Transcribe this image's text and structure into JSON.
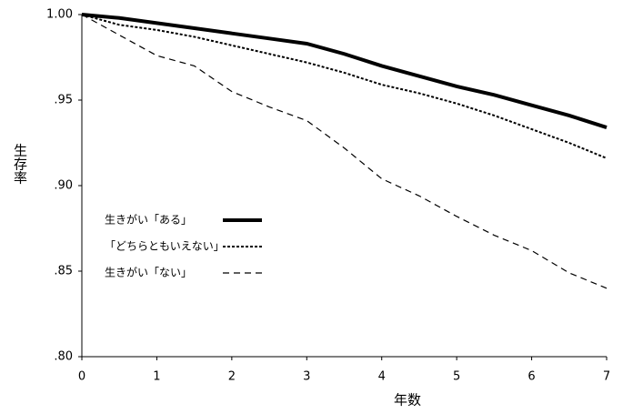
{
  "chart_data": {
    "type": "line",
    "x_label": "年数",
    "y_label": "生存率",
    "x": [
      0,
      0.5,
      1,
      1.5,
      2,
      2.5,
      3,
      3.5,
      4,
      4.5,
      5,
      5.5,
      6,
      6.5,
      7
    ],
    "series": [
      {
        "name": "生きがい「ある」",
        "color": "#000000",
        "linestyle": "solid",
        "linewidth": 4,
        "values": [
          1.0,
          0.998,
          0.995,
          0.992,
          0.989,
          0.986,
          0.983,
          0.977,
          0.97,
          0.964,
          0.958,
          0.953,
          0.947,
          0.941,
          0.934
        ]
      },
      {
        "name": "「どちらともいえない」",
        "color": "#000000",
        "linestyle": "dotted",
        "linewidth": 2,
        "values": [
          1.0,
          0.994,
          0.991,
          0.987,
          0.982,
          0.977,
          0.972,
          0.966,
          0.959,
          0.954,
          0.948,
          0.941,
          0.933,
          0.925,
          0.916
        ]
      },
      {
        "name": "生きがい「ない」",
        "color": "#000000",
        "linestyle": "dashed",
        "linewidth": 1.2,
        "values": [
          1.0,
          0.988,
          0.976,
          0.97,
          0.955,
          0.946,
          0.938,
          0.922,
          0.904,
          0.894,
          0.882,
          0.871,
          0.862,
          0.849,
          0.84
        ]
      }
    ],
    "xlim": [
      0,
      7
    ],
    "xticks": [
      0,
      1,
      2,
      3,
      4,
      5,
      6,
      7
    ],
    "ylim": [
      0.8,
      1.0
    ],
    "yticks": [
      {
        "value": 0.8,
        "label": ".80"
      },
      {
        "value": 0.85,
        "label": ".85"
      },
      {
        "value": 0.9,
        "label": ".90"
      },
      {
        "value": 0.95,
        "label": ".95"
      },
      {
        "value": 1.0,
        "label": "1.00"
      }
    ],
    "legend": "left"
  }
}
